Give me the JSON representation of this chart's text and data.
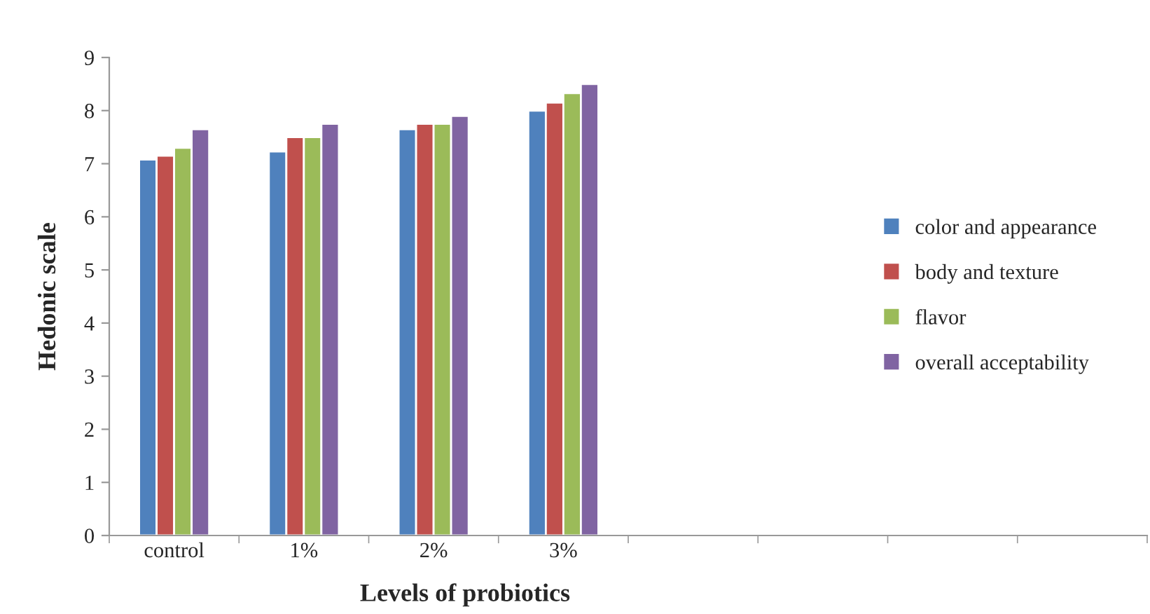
{
  "chart_data": {
    "type": "bar",
    "xlabel": "Levels of probiotics",
    "ylabel": "Hedonic scale",
    "categories": [
      "control",
      "1%",
      "2%",
      "3%",
      null,
      null,
      null,
      null
    ],
    "series": [
      {
        "name": "color and appearance",
        "color": "#4f81bd",
        "values": [
          7.08,
          7.23,
          7.65,
          8.0,
          null,
          null,
          null,
          null
        ]
      },
      {
        "name": "body and texture",
        "color": "#c0504d",
        "values": [
          7.15,
          7.5,
          7.75,
          8.15,
          null,
          null,
          null,
          null
        ]
      },
      {
        "name": "flavor",
        "color": "#9bbb59",
        "values": [
          7.3,
          7.5,
          7.75,
          8.33,
          null,
          null,
          null,
          null
        ]
      },
      {
        "name": "overall acceptability",
        "color": "#8064a2",
        "values": [
          7.65,
          7.75,
          7.9,
          8.5,
          null,
          null,
          null,
          null
        ]
      }
    ],
    "ylim": [
      0,
      9
    ],
    "yticks": [
      0,
      1,
      2,
      3,
      4,
      5,
      6,
      7,
      8,
      9
    ],
    "grid": false,
    "legend": "right"
  }
}
